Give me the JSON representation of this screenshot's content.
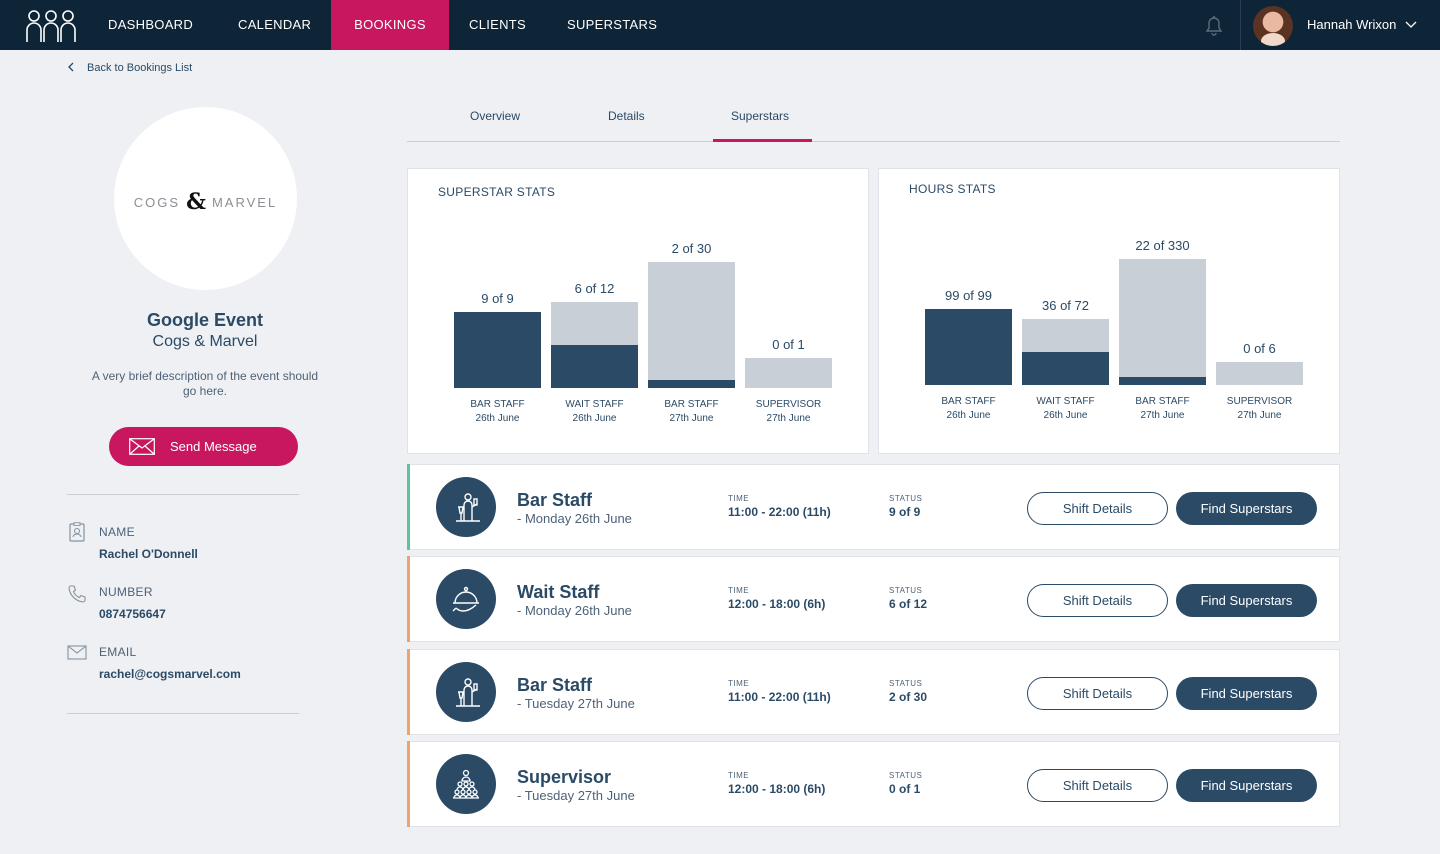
{
  "nav": {
    "items": [
      {
        "label": "DASHBOARD"
      },
      {
        "label": "CALENDAR"
      },
      {
        "label": "BOOKINGS"
      },
      {
        "label": "CLIENTS"
      },
      {
        "label": "SUPERSTARS"
      }
    ],
    "active": "BOOKINGS",
    "user_name": "Hannah Wrixon",
    "icons": [
      "team-logo-icon",
      "bell-icon",
      "chevron-down-icon"
    ]
  },
  "back_link": "Back to Bookings List",
  "event": {
    "logo_left": "COGS",
    "logo_amp": "&",
    "logo_right": "MARVEL",
    "title": "Google Event",
    "client": "Cogs & Marvel",
    "description": "A very brief description of the event should go here.",
    "send_button": "Send Message"
  },
  "contact": {
    "name_label": "NAME",
    "name_value": "Rachel O'Donnell",
    "number_label": "NUMBER",
    "number_value": "0874756647",
    "email_label": "EMAIL",
    "email_value": "rachel@cogsmarvel.com"
  },
  "tabs": [
    {
      "label": "Overview"
    },
    {
      "label": "Details"
    },
    {
      "label": "Superstars"
    }
  ],
  "active_tab": "Superstars",
  "colors": {
    "navy": "#0e2437",
    "primary": "#2b4a66",
    "accent": "#c8175f",
    "track": "#c8cfd7",
    "green_accent": "#5cc59a",
    "orange_accent": "#f0a26b"
  },
  "chart_data": [
    {
      "type": "bar",
      "title": "SUPERSTAR STATS",
      "categories": [
        "BAR STAFF 26th June",
        "WAIT STAFF 26th June",
        "BAR STAFF 27th June",
        "SUPERVISOR 27th June"
      ],
      "series": [
        {
          "name": "filled",
          "values": [
            9,
            6,
            2,
            0
          ]
        },
        {
          "name": "required",
          "values": [
            9,
            12,
            30,
            1
          ]
        }
      ],
      "bars": [
        {
          "label": "9 of 9",
          "cat": "BAR STAFF",
          "date": "26th June",
          "filled": 9,
          "total": 9
        },
        {
          "label": "6 of 12",
          "cat": "WAIT STAFF",
          "date": "26th June",
          "filled": 6,
          "total": 12
        },
        {
          "label": "2 of 30",
          "cat": "BAR STAFF",
          "date": "27th June",
          "filled": 2,
          "total": 30
        },
        {
          "label": "0 of 1",
          "cat": "SUPERVISOR",
          "date": "27th June",
          "filled": 0,
          "total": 1
        }
      ]
    },
    {
      "type": "bar",
      "title": "HOURS STATS",
      "categories": [
        "BAR STAFF 26th June",
        "WAIT STAFF 26th June",
        "BAR STAFF 27th June",
        "SUPERVISOR 27th June"
      ],
      "series": [
        {
          "name": "filled",
          "values": [
            99,
            36,
            22,
            0
          ]
        },
        {
          "name": "required",
          "values": [
            99,
            72,
            330,
            6
          ]
        }
      ],
      "bars": [
        {
          "label": "99 of 99",
          "cat": "BAR STAFF",
          "date": "26th June",
          "filled": 99,
          "total": 99
        },
        {
          "label": "36 of 72",
          "cat": "WAIT STAFF",
          "date": "26th June",
          "filled": 36,
          "total": 72
        },
        {
          "label": "22 of 330",
          "cat": "BAR STAFF",
          "date": "27th June",
          "filled": 22,
          "total": 330
        },
        {
          "label": "0 of 6",
          "cat": "SUPERVISOR",
          "date": "27th June",
          "filled": 0,
          "total": 6
        }
      ]
    }
  ],
  "shifts": [
    {
      "role": "Bar Staff",
      "date": "- Monday 26th June",
      "time_label": "TIME",
      "time": "11:00 - 22:00 (11h)",
      "status_label": "STATUS",
      "status": "9 of 9",
      "accent": "#5cc59a",
      "icon": "bartender-icon",
      "details_btn": "Shift Details",
      "find_btn": "Find Superstars"
    },
    {
      "role": "Wait Staff",
      "date": "- Monday 26th June",
      "time_label": "TIME",
      "time": "12:00 - 18:00 (6h)",
      "status_label": "STATUS",
      "status": "6 of 12",
      "accent": "#f0a26b",
      "icon": "cloche-icon",
      "details_btn": "Shift Details",
      "find_btn": "Find Superstars"
    },
    {
      "role": "Bar Staff",
      "date": "- Tuesday 27th June",
      "time_label": "TIME",
      "time": "11:00 - 22:00 (11h)",
      "status_label": "STATUS",
      "status": "2 of 30",
      "accent": "#f0a26b",
      "icon": "bartender-icon",
      "details_btn": "Shift Details",
      "find_btn": "Find Superstars"
    },
    {
      "role": "Supervisor",
      "date": "- Tuesday 27th June",
      "time_label": "TIME",
      "time": "12:00 - 18:00 (6h)",
      "status_label": "STATUS",
      "status": "0 of 1",
      "accent": "#f0a26b",
      "icon": "supervisor-icon",
      "details_btn": "Shift Details",
      "find_btn": "Find Superstars"
    }
  ]
}
